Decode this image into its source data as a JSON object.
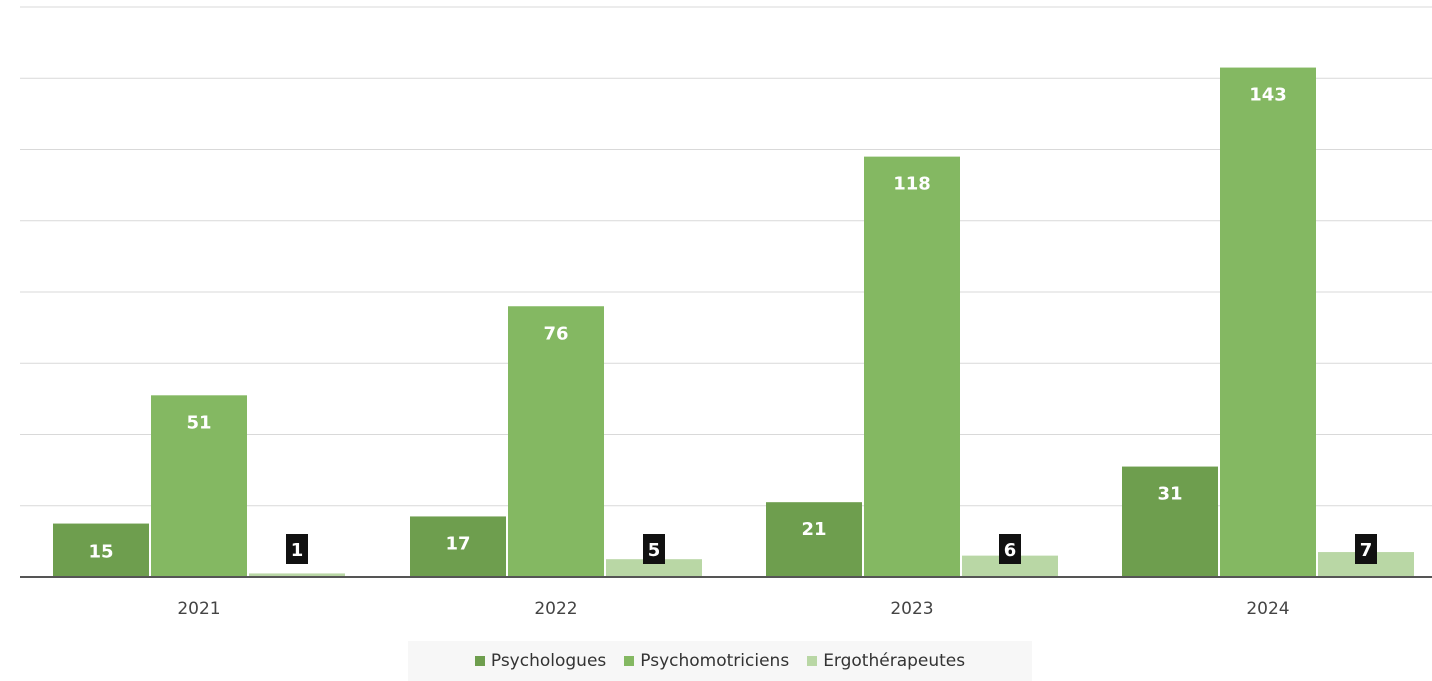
{
  "chart_data": {
    "type": "bar",
    "categories": [
      "2021",
      "2022",
      "2023",
      "2024"
    ],
    "series": [
      {
        "name": "Psychologues",
        "values": [
          15,
          17,
          21,
          31
        ],
        "color": "#6e9e4e",
        "label_style": "plain"
      },
      {
        "name": "Psychomotriciens",
        "values": [
          51,
          76,
          118,
          143
        ],
        "color": "#84b862",
        "label_style": "plain"
      },
      {
        "name": "Ergothérapeutes",
        "values": [
          1,
          5,
          6,
          7
        ],
        "color": "#b9d7a5",
        "label_style": "boxed"
      }
    ],
    "ylim": [
      0,
      160
    ],
    "grid": true,
    "legend_position": "bottom"
  }
}
